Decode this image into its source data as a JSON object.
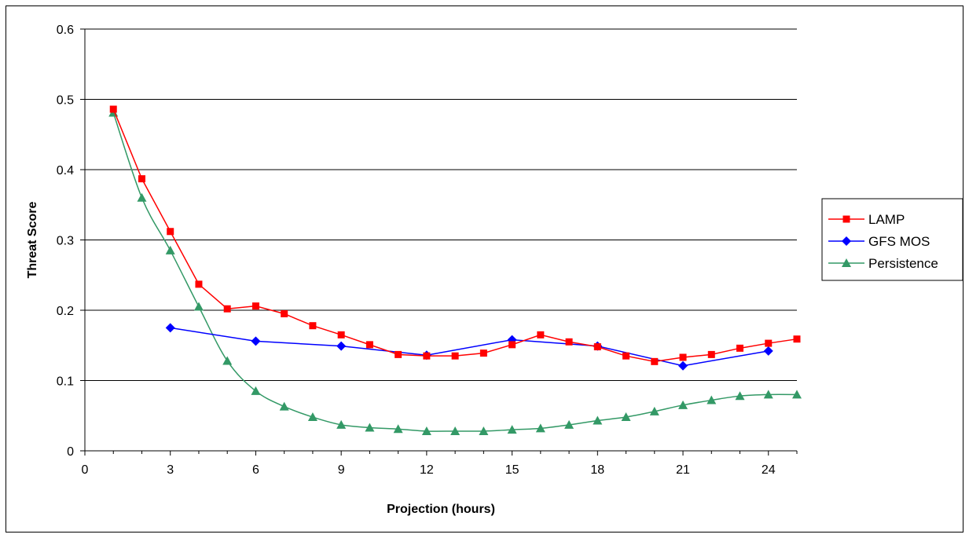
{
  "chart_data": {
    "type": "line",
    "title": "",
    "xlabel": "Projection (hours)",
    "ylabel": "Threat Score",
    "xlim": [
      0,
      25
    ],
    "ylim": [
      0,
      0.6
    ],
    "xticks": [
      0,
      3,
      6,
      9,
      12,
      15,
      18,
      21,
      24
    ],
    "yticks": [
      0,
      0.1,
      0.2,
      0.3,
      0.4,
      0.5,
      0.6
    ],
    "ytick_labels": [
      "0",
      "0.1",
      "0.2",
      "0.3",
      "0.4",
      "0.5",
      "0.6"
    ],
    "grid": "horizontal",
    "legend_position": "right",
    "series": [
      {
        "name": "LAMP",
        "color": "#ff0000",
        "marker": "square",
        "x": [
          1,
          2,
          3,
          4,
          5,
          6,
          7,
          8,
          9,
          10,
          11,
          12,
          13,
          14,
          15,
          16,
          17,
          18,
          19,
          20,
          21,
          22,
          23,
          24,
          25
        ],
        "y": [
          0.486,
          0.387,
          0.312,
          0.237,
          0.202,
          0.206,
          0.195,
          0.178,
          0.165,
          0.151,
          0.137,
          0.135,
          0.135,
          0.139,
          0.151,
          0.165,
          0.155,
          0.148,
          0.135,
          0.127,
          0.133,
          0.137,
          0.146,
          0.153,
          0.159
        ]
      },
      {
        "name": "GFS MOS",
        "color": "#0000ff",
        "marker": "diamond",
        "x": [
          3,
          6,
          9,
          12,
          15,
          18,
          21,
          24
        ],
        "y": [
          0.175,
          0.156,
          0.149,
          0.136,
          0.158,
          0.149,
          0.121,
          0.142
        ]
      },
      {
        "name": "Persistence",
        "color": "#339966",
        "marker": "triangle",
        "smooth": true,
        "x": [
          1,
          2,
          3,
          4,
          5,
          6,
          7,
          8,
          9,
          10,
          11,
          12,
          13,
          14,
          15,
          16,
          17,
          18,
          19,
          20,
          21,
          22,
          23,
          24,
          25
        ],
        "y": [
          0.481,
          0.36,
          0.285,
          0.205,
          0.128,
          0.085,
          0.063,
          0.048,
          0.037,
          0.033,
          0.031,
          0.028,
          0.028,
          0.028,
          0.03,
          0.032,
          0.037,
          0.043,
          0.048,
          0.056,
          0.065,
          0.072,
          0.078,
          0.08,
          0.08
        ]
      }
    ]
  }
}
